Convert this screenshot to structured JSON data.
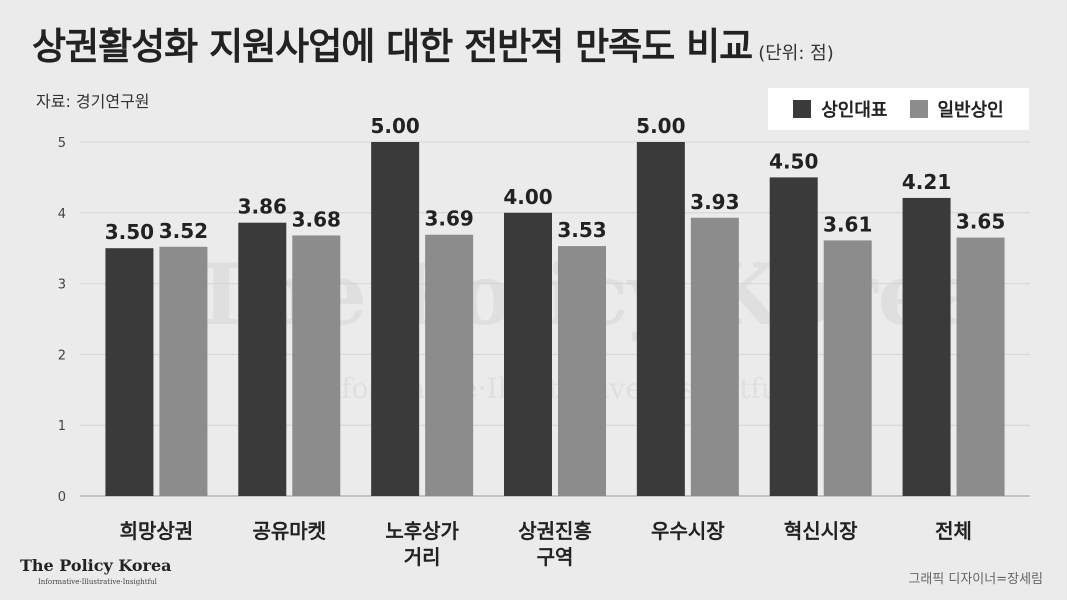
{
  "header": {
    "title": "상권활성화 지원사업에 대한 전반적 만족도 비교",
    "unit": "(단위: 점)",
    "source": "자료: 경기연구원"
  },
  "watermark": {
    "main": "The Policy Korea",
    "sub": "Informative·Illustrative·Insightful"
  },
  "footer": {
    "logo": "The Policy Korea",
    "logo_sub": "Informative·Illustrative·Insightful",
    "credit": "그래픽 디자이너=장세림"
  },
  "colors": {
    "series1": "#3a3a3a",
    "series2": "#8c8c8c",
    "background": "#ebebeb",
    "gridline": "#d4d4d4"
  },
  "chart_data": {
    "type": "bar",
    "categories": [
      [
        "희망상권"
      ],
      [
        "공유마켓"
      ],
      [
        "노후상가",
        "거리"
      ],
      [
        "상권진흥",
        "구역"
      ],
      [
        "우수시장"
      ],
      [
        "혁신시장"
      ],
      [
        "전체"
      ]
    ],
    "series": [
      {
        "name": "상인대표",
        "values": [
          3.5,
          3.86,
          5.0,
          4.0,
          5.0,
          4.5,
          4.21
        ],
        "labels": [
          "3.50",
          "3.86",
          "5.00",
          "4.00",
          "5.00",
          "4.50",
          "4.21"
        ]
      },
      {
        "name": "일반상인",
        "values": [
          3.52,
          3.68,
          3.69,
          3.53,
          3.93,
          3.61,
          3.65
        ],
        "labels": [
          "3.52",
          "3.68",
          "3.69",
          "3.53",
          "3.93",
          "3.61",
          "3.65"
        ]
      }
    ],
    "ylim": [
      0,
      5
    ],
    "yticks": [
      "0",
      "1",
      "2",
      "3",
      "4",
      "5"
    ],
    "grid": true,
    "legend_position": "top-right"
  }
}
